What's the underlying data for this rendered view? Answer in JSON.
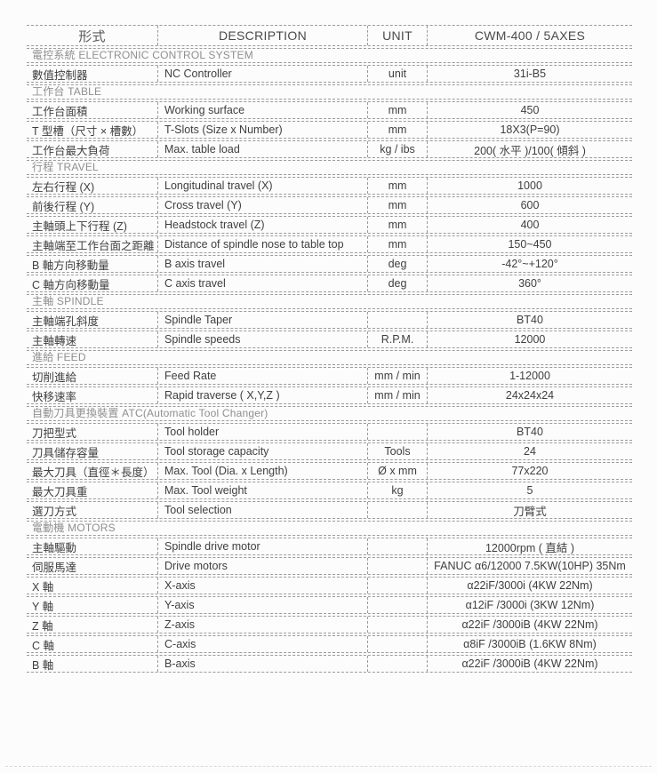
{
  "table": {
    "header": {
      "type_label": "形式",
      "description_label": "DESCRIPTION",
      "unit_label": "UNIT",
      "model_label": "CWM-400 / 5AXES"
    },
    "rows": [
      {
        "section": "電控系統 ELECTRONIC CONTROL SYSTEM"
      },
      {
        "zh": "數值控制器",
        "desc": "NC Controller",
        "unit": "unit",
        "value": "31i-B5"
      },
      {
        "section": "工作台 TABLE"
      },
      {
        "zh": "工作台面積",
        "desc": "Working surface",
        "unit": "mm",
        "value": "450"
      },
      {
        "zh": "T 型槽（尺寸 × 槽數）",
        "desc": "T-Slots (Size x Number)",
        "unit": "mm",
        "value": "18X3(P=90)"
      },
      {
        "zh": "工作台最大負荷",
        "desc": "Max. table load",
        "unit": "kg / ibs",
        "value": "200( 水平 )/100( 傾斜 )"
      },
      {
        "section": "行程 TRAVEL"
      },
      {
        "zh": "左右行程 (X)",
        "desc": "Longitudinal travel (X)",
        "unit": "mm",
        "value": "1000"
      },
      {
        "zh": "前後行程 (Y)",
        "desc": "Cross travel (Y)",
        "unit": "mm",
        "value": "600"
      },
      {
        "zh": "主軸頭上下行程 (Z)",
        "desc": "Headstock travel (Z)",
        "unit": "mm",
        "value": "400"
      },
      {
        "zh": "主軸端至工作台面之距離",
        "desc": "Distance of spindle nose to table top",
        "unit": "mm",
        "value": "150~450"
      },
      {
        "zh": "B 軸方向移動量",
        "desc": "B axis travel",
        "unit": "deg",
        "value": "-42°~+120°"
      },
      {
        "zh": "C 軸方向移動量",
        "desc": "C axis travel",
        "unit": "deg",
        "value": "360°"
      },
      {
        "section": "主軸 SPINDLE"
      },
      {
        "zh": "主軸端孔斜度",
        "desc": "Spindle Taper",
        "unit": "",
        "value": "BT40"
      },
      {
        "zh": "主軸轉速",
        "desc": "Spindle speeds",
        "unit": "R.P.M.",
        "value": "12000"
      },
      {
        "section": "進給 FEED"
      },
      {
        "zh": "切削進給",
        "desc": "Feed Rate",
        "unit": "mm / min",
        "value": "1-12000"
      },
      {
        "zh": "快移速率",
        "desc": "Rapid traverse ( X,Y,Z )",
        "unit": "mm / min",
        "value": "24x24x24"
      },
      {
        "section": "自動刀具更換裝置 ATC(Automatic Tool Changer)"
      },
      {
        "zh": "刀把型式",
        "desc": "Tool holder",
        "unit": "",
        "value": "BT40"
      },
      {
        "zh": "刀具儲存容量",
        "desc": "Tool storage capacity",
        "unit": "Tools",
        "value": "24"
      },
      {
        "zh": "最大刀具（直徑＊長度）",
        "desc": "Max. Tool (Dia. x Length)",
        "unit": "Ø x mm",
        "value": "77x220"
      },
      {
        "zh": "最大刀具重",
        "desc": "Max. Tool weight",
        "unit": "kg",
        "value": "5"
      },
      {
        "zh": "選刀方式",
        "desc": "Tool selection",
        "unit": "",
        "value": "刀臂式"
      },
      {
        "section": "電動機 MOTORS"
      },
      {
        "zh": "主軸驅動",
        "desc": "Spindle drive motor",
        "unit": "",
        "value": "12000rpm ( 直結 )"
      },
      {
        "zh": "伺服馬達",
        "desc": "Drive motors",
        "unit": "",
        "value": "FANUC α6/12000 7.5KW(10HP) 35Nm"
      },
      {
        "zh": "X 軸",
        "desc": "X-axis",
        "unit": "",
        "value": "α22iF/3000i  (4KW 22Nm)"
      },
      {
        "zh": "Y 軸",
        "desc": "Y-axis",
        "unit": "",
        "value": "α12iF /3000i  (3KW 12Nm)"
      },
      {
        "zh": "Z 軸",
        "desc": "Z-axis",
        "unit": "",
        "value": "α22iF /3000iB (4KW 22Nm)"
      },
      {
        "zh": "C 軸",
        "desc": "C-axis",
        "unit": "",
        "value": "α8iF /3000iB (1.6KW 8Nm)"
      },
      {
        "zh": "B 軸",
        "desc": "B-axis",
        "unit": "",
        "value": "α22iF /3000iB (4KW 22Nm)"
      }
    ]
  },
  "colors": {
    "data_text": "#3f3f3f",
    "section_text": "#8f8f8f",
    "border": "#9b9b9b",
    "faint_bottom_border": "#d8d8d8",
    "background": "#fcfcfc"
  }
}
